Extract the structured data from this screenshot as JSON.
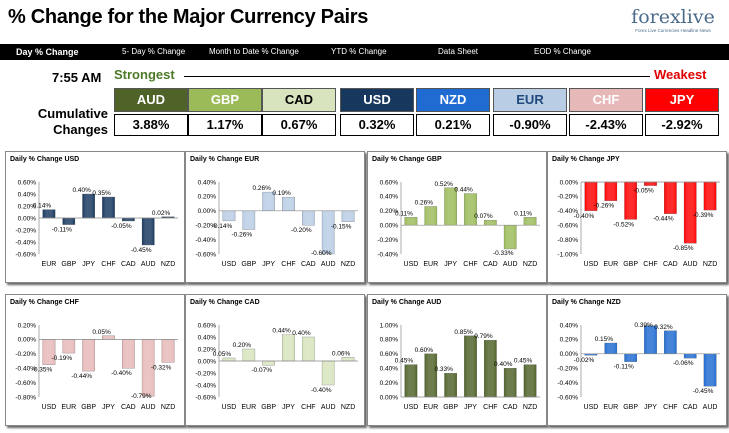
{
  "header": {
    "title": "% Change for the Major Currency Pairs",
    "logo": {
      "text": "forexlive",
      "tagline": "Forex Live Currencies Headline News"
    },
    "tabs": [
      "Day % Change",
      "5- Day % Change",
      "Month to Date % Change",
      "YTD % Change",
      "Data Sheet",
      "EOD % Change"
    ]
  },
  "summary": {
    "time": "7:55 AM",
    "strongest_label": "Strongest",
    "weakest_label": "Weakest",
    "cumulative_label_1": "Cumulative",
    "cumulative_label_2": "Changes",
    "currencies": [
      {
        "name": "AUD",
        "value": "3.88%",
        "color": "#4f6228",
        "text_color": "#ffffff"
      },
      {
        "name": "GBP",
        "value": "1.17%",
        "color": "#9bbb59",
        "text_color": "#ffffff"
      },
      {
        "name": "CAD",
        "value": "0.67%",
        "color": "#d7e4bd",
        "text_color": "#000000"
      },
      {
        "name": "USD",
        "value": "0.32%",
        "color": "#17375e",
        "text_color": "#ffffff"
      },
      {
        "name": "NZD",
        "value": "0.21%",
        "color": "#1f6bd1",
        "text_color": "#ffffff"
      },
      {
        "name": "EUR",
        "value": "-0.90%",
        "color": "#b9cde5",
        "text_color": "#1f497d"
      },
      {
        "name": "CHF",
        "value": "-2.43%",
        "color": "#e6b9b8",
        "text_color": "#ffffff"
      },
      {
        "name": "JPY",
        "value": "-2.92%",
        "color": "#ff0000",
        "text_color": "#ffffff"
      }
    ]
  },
  "chart_data": [
    {
      "type": "bar",
      "title": "Daily % Change USD",
      "categories": [
        "EUR",
        "GBP",
        "JPY",
        "CHF",
        "CAD",
        "AUD",
        "NZD"
      ],
      "values": [
        0.14,
        -0.11,
        0.4,
        0.35,
        -0.05,
        -0.45,
        0.02
      ],
      "labels": [
        "0.14%",
        "-0.11%",
        "0.40%",
        "0.35%",
        "-0.05%",
        "-0.45%",
        "0.02%"
      ],
      "ylim": [
        -0.6,
        0.6
      ],
      "yticks": [
        "0.60%",
        "0.40%",
        "0.20%",
        "0.00%",
        "-0.20%",
        "-0.40%",
        "-0.60%"
      ],
      "color": "#17375e"
    },
    {
      "type": "bar",
      "title": "Daily % Change EUR",
      "categories": [
        "USD",
        "GBP",
        "JPY",
        "CHF",
        "CAD",
        "AUD",
        "NZD"
      ],
      "values": [
        -0.14,
        -0.26,
        0.26,
        0.19,
        -0.2,
        -0.6,
        -0.15
      ],
      "labels": [
        "-0.14%",
        "-0.26%",
        "0.26%",
        "0.19%",
        "-0.20%",
        "-0.60%",
        "-0.15%"
      ],
      "ylim": [
        -0.6,
        0.4
      ],
      "yticks": [
        "0.40%",
        "0.20%",
        "0.00%",
        "-0.20%",
        "-0.40%",
        "-0.60%"
      ],
      "color": "#b9cde5"
    },
    {
      "type": "bar",
      "title": "Daily % Change GBP",
      "categories": [
        "USD",
        "EUR",
        "JPY",
        "CHF",
        "CAD",
        "AUD",
        "NZD"
      ],
      "values": [
        0.11,
        0.26,
        0.52,
        0.44,
        0.07,
        -0.33,
        0.11
      ],
      "labels": [
        "0.11%",
        "0.26%",
        "0.52%",
        "0.44%",
        "0.07%",
        "-0.33%",
        "0.11%"
      ],
      "ylim": [
        -0.4,
        0.6
      ],
      "yticks": [
        "0.60%",
        "0.40%",
        "0.20%",
        "0.00%",
        "-0.20%",
        "-0.40%"
      ],
      "color": "#9bbb59"
    },
    {
      "type": "bar",
      "title": "Daily % Change JPY",
      "categories": [
        "USD",
        "EUR",
        "GBP",
        "CHF",
        "CAD",
        "AUD",
        "NZD"
      ],
      "values": [
        -0.4,
        -0.26,
        -0.52,
        -0.05,
        -0.44,
        -0.85,
        -0.39
      ],
      "labels": [
        "-0.40%",
        "-0.26%",
        "-0.52%",
        "-0.05%",
        "-0.44%",
        "-0.85%",
        "-0.39%"
      ],
      "ylim": [
        -1.0,
        0.0
      ],
      "yticks": [
        "0.00%",
        "-0.20%",
        "-0.40%",
        "-0.60%",
        "-0.80%",
        "-1.00%"
      ],
      "color": "#ff0000"
    },
    {
      "type": "bar",
      "title": "Daily % Change CHF",
      "categories": [
        "USD",
        "EUR",
        "GBP",
        "JPY",
        "CAD",
        "AUD",
        "NZD"
      ],
      "values": [
        -0.35,
        -0.19,
        -0.44,
        0.05,
        -0.4,
        -0.79,
        -0.32
      ],
      "labels": [
        "-0.35%",
        "-0.19%",
        "-0.44%",
        "0.05%",
        "-0.40%",
        "-0.79%",
        "-0.32%"
      ],
      "ylim": [
        -0.8,
        0.2
      ],
      "yticks": [
        "0.20%",
        "0.00%",
        "-0.20%",
        "-0.40%",
        "-0.60%",
        "-0.80%"
      ],
      "color": "#e6b9b8"
    },
    {
      "type": "bar",
      "title": "Daily % Change CAD",
      "categories": [
        "USD",
        "EUR",
        "GBP",
        "JPY",
        "CHF",
        "AUD",
        "NZD"
      ],
      "values": [
        0.05,
        0.2,
        -0.07,
        0.44,
        0.4,
        -0.4,
        0.06
      ],
      "labels": [
        "0.05%",
        "0.20%",
        "-0.07%",
        "0.44%",
        "0.40%",
        "-0.40%",
        "0.06%"
      ],
      "ylim": [
        -0.6,
        0.6
      ],
      "yticks": [
        "0.60%",
        "0.40%",
        "0.20%",
        "0.00%",
        "-0.20%",
        "-0.40%",
        "-0.60%"
      ],
      "color": "#d7e4bd"
    },
    {
      "type": "bar",
      "title": "Daily % Change AUD",
      "categories": [
        "USD",
        "EUR",
        "GBP",
        "JPY",
        "CHF",
        "CAD",
        "NZD"
      ],
      "values": [
        0.45,
        0.6,
        0.33,
        0.85,
        0.79,
        0.4,
        0.45
      ],
      "labels": [
        "0.45%",
        "0.60%",
        "0.33%",
        "0.85%",
        "0.79%",
        "0.40%",
        "0.45%"
      ],
      "ylim": [
        0.0,
        1.0
      ],
      "yticks": [
        "1.00%",
        "0.80%",
        "0.60%",
        "0.40%",
        "0.20%",
        "0.00%"
      ],
      "color": "#4f6228"
    },
    {
      "type": "bar",
      "title": "Daily % Change NZD",
      "categories": [
        "USD",
        "EUR",
        "GBP",
        "JPY",
        "CHF",
        "CAD",
        "AUD"
      ],
      "values": [
        -0.02,
        0.15,
        -0.11,
        0.39,
        0.32,
        -0.06,
        -0.45
      ],
      "labels": [
        "-0.02%",
        "0.15%",
        "-0.11%",
        "0.39%",
        "0.32%",
        "-0.06%",
        "-0.45%"
      ],
      "ylim": [
        -0.6,
        0.4
      ],
      "yticks": [
        "0.40%",
        "0.20%",
        "0.00%",
        "-0.20%",
        "-0.40%",
        "-0.60%"
      ],
      "color": "#1f6bd1"
    }
  ]
}
